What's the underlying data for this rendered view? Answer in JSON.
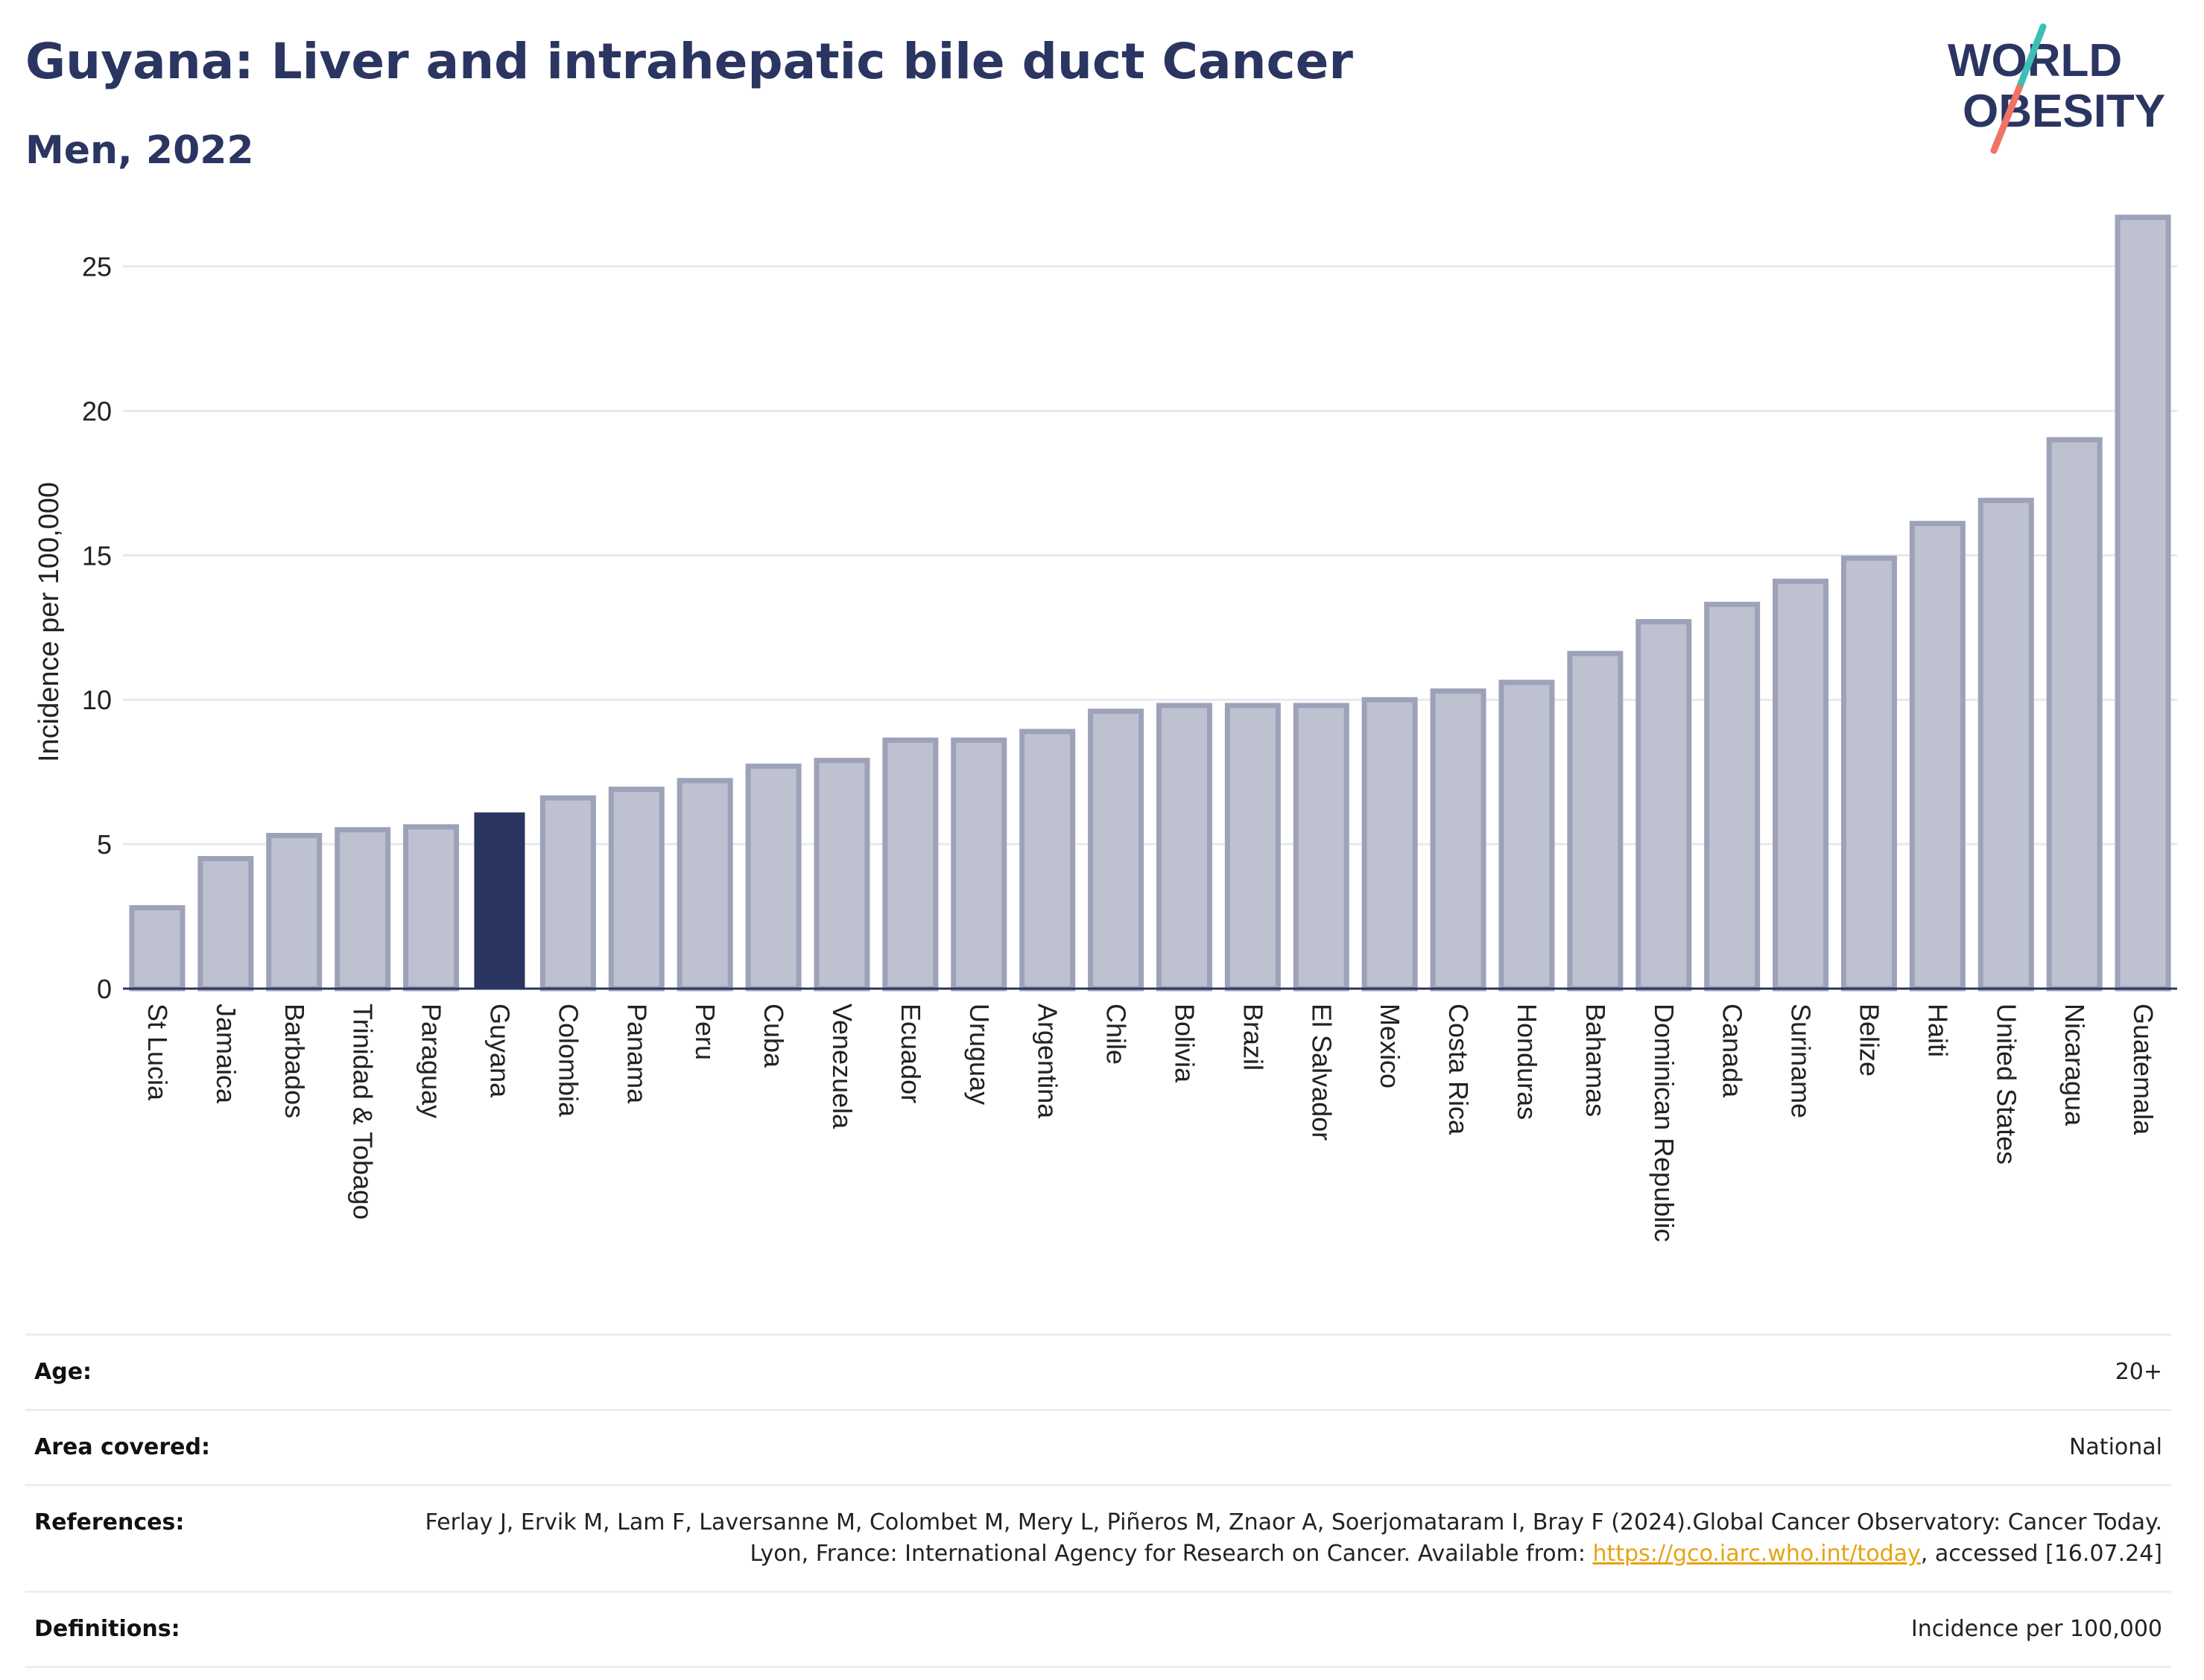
{
  "header": {
    "title": "Guyana: Liver and intrahepatic bile duct Cancer",
    "subtitle": "Men, 2022"
  },
  "logo": {
    "line1": "WORLD",
    "line2": "OBESITY",
    "icon": "world-obesity-slash-logo"
  },
  "colors": {
    "highlight_bar": "#2b3561",
    "other_bars_fill": "#bec1cf",
    "other_bars_stroke": "#9da2b9",
    "text_dark": "#2b3561",
    "link": "#e6a312"
  },
  "chart_data": {
    "type": "bar",
    "title": "Guyana: Liver and intrahepatic bile duct Cancer",
    "subtitle": "Men, 2022",
    "xlabel": "",
    "ylabel": "Incidence per 100,000",
    "ylim": [
      0,
      27
    ],
    "yticks": [
      0,
      5,
      10,
      15,
      20,
      25
    ],
    "grid": true,
    "highlight": "Guyana",
    "categories": [
      "St Lucia",
      "Jamaica",
      "Barbados",
      "Trinidad & Tobago",
      "Paraguay",
      "Guyana",
      "Colombia",
      "Panama",
      "Peru",
      "Cuba",
      "Venezuela",
      "Ecuador",
      "Uruguay",
      "Argentina",
      "Chile",
      "Bolivia",
      "Brazil",
      "El Salvador",
      "Mexico",
      "Costa Rica",
      "Honduras",
      "Bahamas",
      "Dominican Republic",
      "Canada",
      "Suriname",
      "Belize",
      "Haiti",
      "United States",
      "Nicaragua",
      "Guatemala"
    ],
    "values": [
      2.8,
      4.5,
      5.3,
      5.5,
      5.6,
      6.1,
      6.6,
      6.9,
      7.2,
      7.7,
      7.9,
      8.6,
      8.6,
      8.9,
      9.6,
      9.8,
      9.8,
      9.8,
      10.0,
      10.3,
      10.6,
      11.6,
      12.7,
      13.3,
      14.1,
      14.9,
      16.1,
      16.9,
      19.0,
      26.7
    ]
  },
  "info": {
    "age": {
      "label": "Age:",
      "value": "20+"
    },
    "area": {
      "label": "Area covered:",
      "value": "National"
    },
    "references": {
      "label": "References:",
      "text_before": "Ferlay J, Ervik M, Lam F, Laversanne M, Colombet M, Mery L, Piñeros M, Znaor A, Soerjomataram I, Bray F (2024).Global Cancer Observatory: Cancer Today. Lyon, France: International Agency for Research on Cancer. Available from: ",
      "link": "https://gco.iarc.who.int/today",
      "text_after": ", accessed [16.07.24]"
    },
    "definitions": {
      "label": "Definitions:",
      "value": "Incidence per 100,000"
    }
  }
}
